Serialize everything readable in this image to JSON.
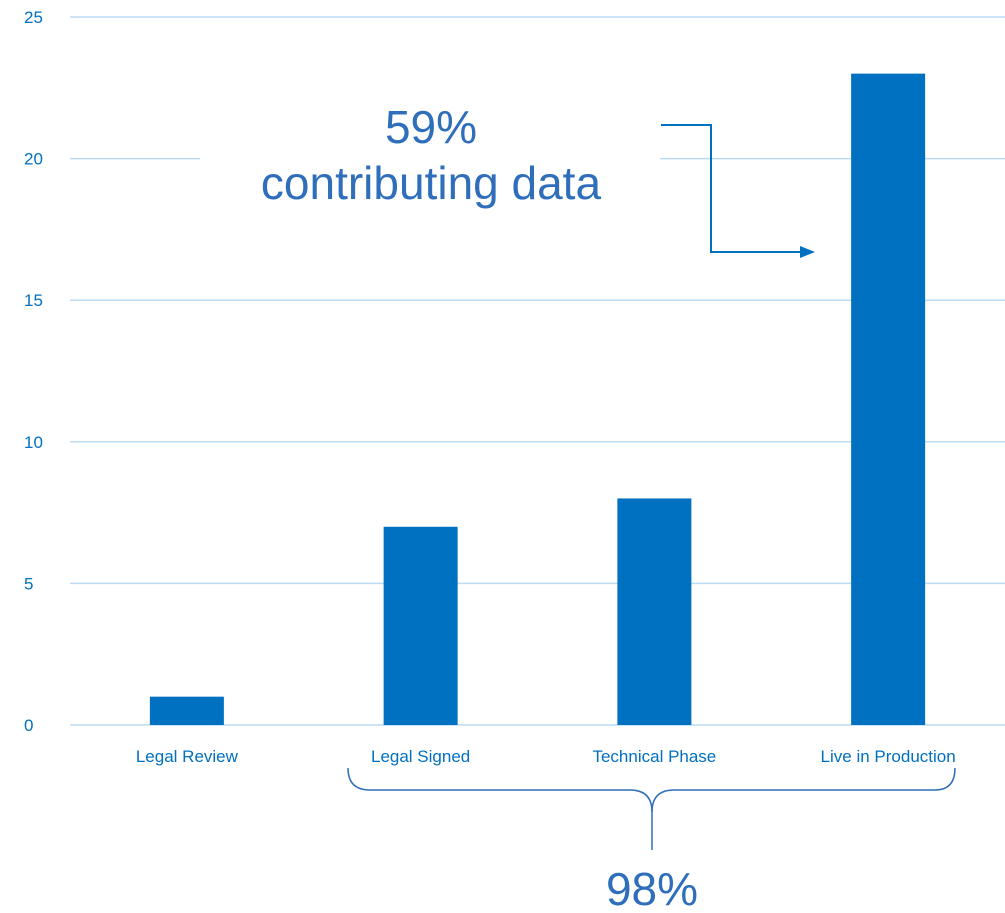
{
  "colors": {
    "bar": "#0070c0",
    "grid": "#bcdcf5",
    "text": "#0070c0",
    "annotation": "#2f6eba"
  },
  "chart_data": {
    "type": "bar",
    "title": "",
    "xlabel": "",
    "ylabel": "",
    "categories": [
      "Legal Review",
      "Legal Signed",
      "Technical Phase",
      "Live in Production"
    ],
    "values": [
      1,
      7,
      8,
      23
    ],
    "ylim": [
      0,
      25
    ],
    "yticks": [
      "0",
      "5",
      "10",
      "15",
      "20",
      "25"
    ],
    "grid": true,
    "legend": "none",
    "annotations": {
      "callout_percent": "59%",
      "callout_text": "contributing data",
      "brace_percent": "98%"
    }
  }
}
